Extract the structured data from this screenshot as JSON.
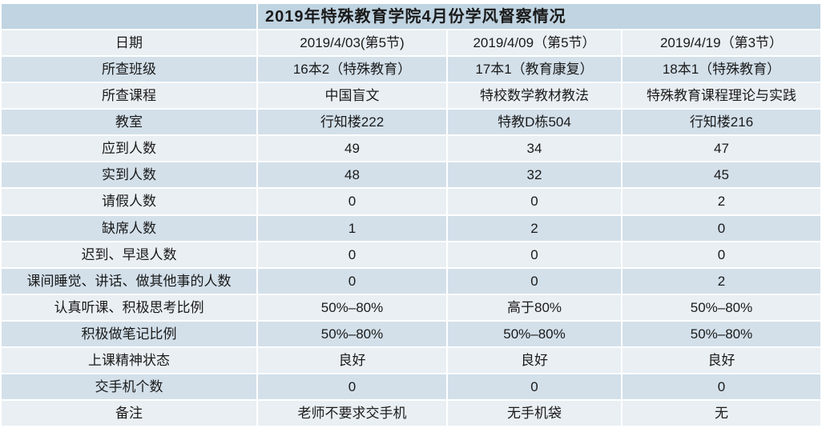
{
  "colors": {
    "title_bg": "#c0d4e2",
    "row_light": "#e9eff3",
    "row_dark": "#d3e0ea",
    "text": "#1a1a1a",
    "separator": "#ffffff"
  },
  "chart_data": {
    "type": "table",
    "title": "2019年特殊教育学院4月份学风督察情况",
    "legend_position": "none",
    "grid": "white-gridlines-between-cells",
    "rows": [
      {
        "label": "日期",
        "values": [
          "2019/4/03(第5节)",
          "2019/4/09（第5节）",
          "2019/4/19（第3节）"
        ]
      },
      {
        "label": "所查班级",
        "values": [
          "16本2（特殊教育）",
          "17本1（教育康复）",
          "18本1（特殊教育）"
        ]
      },
      {
        "label": "所查课程",
        "values": [
          "中国盲文",
          "特校数学教材教法",
          "特殊教育课程理论与实践"
        ]
      },
      {
        "label": "教室",
        "values": [
          "行知楼222",
          "特教D栋504",
          "行知楼216"
        ]
      },
      {
        "label": "应到人数",
        "values": [
          "49",
          "34",
          "47"
        ]
      },
      {
        "label": "实到人数",
        "values": [
          "48",
          "32",
          "45"
        ]
      },
      {
        "label": "请假人数",
        "values": [
          "0",
          "0",
          "2"
        ]
      },
      {
        "label": "缺席人数",
        "values": [
          "1",
          "2",
          "0"
        ]
      },
      {
        "label": "迟到、早退人数",
        "values": [
          "0",
          "0",
          "0"
        ]
      },
      {
        "label": "课间睡觉、讲话、做其他事的人数",
        "values": [
          "0",
          "0",
          "2"
        ]
      },
      {
        "label": "认真听课、积极思考比例",
        "values": [
          "50%–80%",
          "高于80%",
          "50%–80%"
        ]
      },
      {
        "label": "积极做笔记比例",
        "values": [
          "50%–80%",
          "50%–80%",
          "50%–80%"
        ]
      },
      {
        "label": "上课精神状态",
        "values": [
          "良好",
          "良好",
          "良好"
        ]
      },
      {
        "label": "交手机个数",
        "values": [
          "0",
          "0",
          "0"
        ]
      },
      {
        "label": "备注",
        "values": [
          "老师不要求交手机",
          "无手机袋",
          "无"
        ]
      }
    ]
  }
}
